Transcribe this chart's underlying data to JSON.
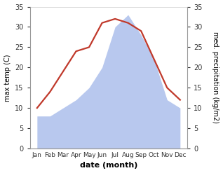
{
  "months": [
    "Jan",
    "Feb",
    "Mar",
    "Apr",
    "May",
    "Jun",
    "Jul",
    "Aug",
    "Sep",
    "Oct",
    "Nov",
    "Dec"
  ],
  "temperature": [
    10,
    14,
    19,
    24,
    25,
    31,
    32,
    31,
    29,
    22,
    15,
    12
  ],
  "precipitation": [
    8,
    8,
    10,
    12,
    15,
    20,
    30,
    33,
    28,
    22,
    12,
    10
  ],
  "temp_color": "#c0392b",
  "precip_color": "#b8c8ee",
  "ylabel_left": "max temp (C)",
  "ylabel_right": "med. precipitation (kg/m2)",
  "xlabel": "date (month)",
  "ylim": [
    0,
    35
  ],
  "yticks": [
    0,
    5,
    10,
    15,
    20,
    25,
    30,
    35
  ],
  "bg_color": "#f0f0f0",
  "fig_color": "#ffffff",
  "line_width": 1.6
}
